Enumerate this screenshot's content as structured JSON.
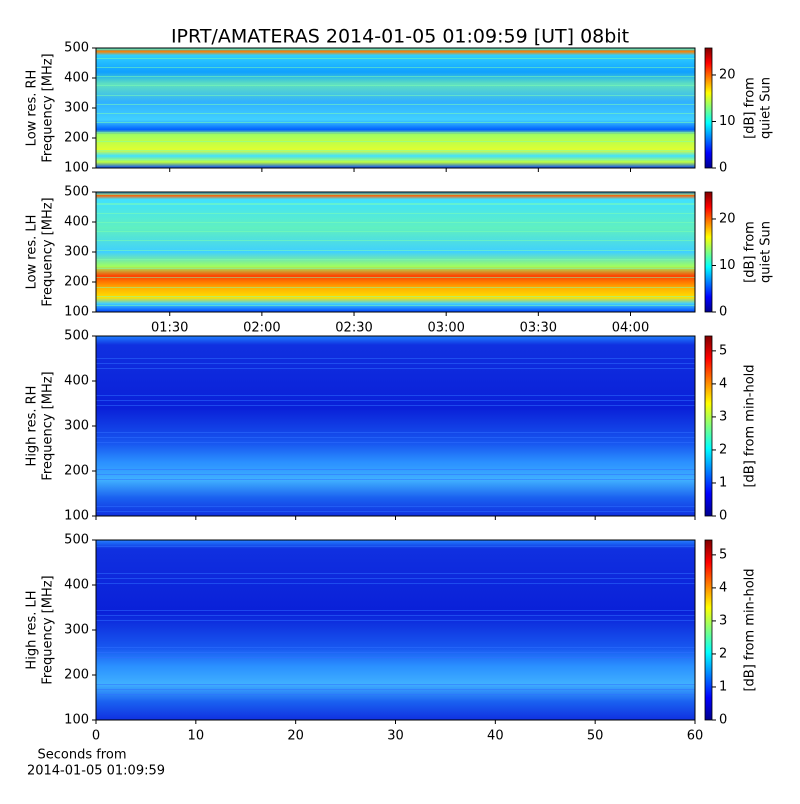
{
  "title": "IPRT/AMATERAS 2014-01-05 01:09:59 [UT]   08bit",
  "x_caption": [
    "Seconds from",
    "2014-01-05 01:09:59"
  ],
  "chart_data": [
    {
      "type": "heatmap",
      "ylabel": [
        "Low res. RH",
        "Frequency [MHz]"
      ],
      "ylim": [
        100,
        500
      ],
      "yticks": [
        100,
        200,
        300,
        400,
        500
      ],
      "xlim": [
        66,
        261
      ],
      "colorbar": {
        "label": [
          "[dB] from",
          "quiet Sun"
        ],
        "lim": [
          0,
          25.8
        ],
        "ticks": [
          0,
          10,
          20
        ]
      }
    },
    {
      "type": "heatmap",
      "ylabel": [
        "Low res. LH",
        "Frequency [MHz]"
      ],
      "ylim": [
        100,
        500
      ],
      "yticks": [
        100,
        200,
        300,
        400,
        500
      ],
      "xlim": [
        66,
        261
      ],
      "xticks": [
        {
          "value": 90,
          "label": "01:30"
        },
        {
          "value": 120,
          "label": "02:00"
        },
        {
          "value": 150,
          "label": "02:30"
        },
        {
          "value": 180,
          "label": "03:00"
        },
        {
          "value": 210,
          "label": "03:30"
        },
        {
          "value": 240,
          "label": "04:00"
        }
      ],
      "colorbar": {
        "label": [
          "[dB] from",
          "quiet Sun"
        ],
        "lim": [
          0,
          25.8
        ],
        "ticks": [
          0,
          10,
          20
        ]
      }
    },
    {
      "type": "heatmap",
      "ylabel": [
        "High res. RH",
        "Frequency [MHz]"
      ],
      "ylim": [
        100,
        500
      ],
      "yticks": [
        100,
        200,
        300,
        400,
        500
      ],
      "xlim": [
        0,
        60
      ],
      "colorbar": {
        "label": [
          "[dB] from min-hold"
        ],
        "lim": [
          0,
          5.45
        ],
        "ticks": [
          0,
          1,
          2,
          3,
          4,
          5
        ]
      }
    },
    {
      "type": "heatmap",
      "ylabel": [
        "High res. LH",
        "Frequency [MHz]"
      ],
      "ylim": [
        100,
        500
      ],
      "yticks": [
        100,
        200,
        300,
        400,
        500
      ],
      "xlim": [
        0,
        60
      ],
      "xticks": [
        0,
        10,
        20,
        30,
        40,
        50,
        60
      ],
      "colorbar": {
        "label": [
          "[dB] from min-hold"
        ],
        "lim": [
          0,
          5.45
        ],
        "ticks": [
          0,
          1,
          2,
          3,
          4,
          5
        ]
      }
    }
  ]
}
